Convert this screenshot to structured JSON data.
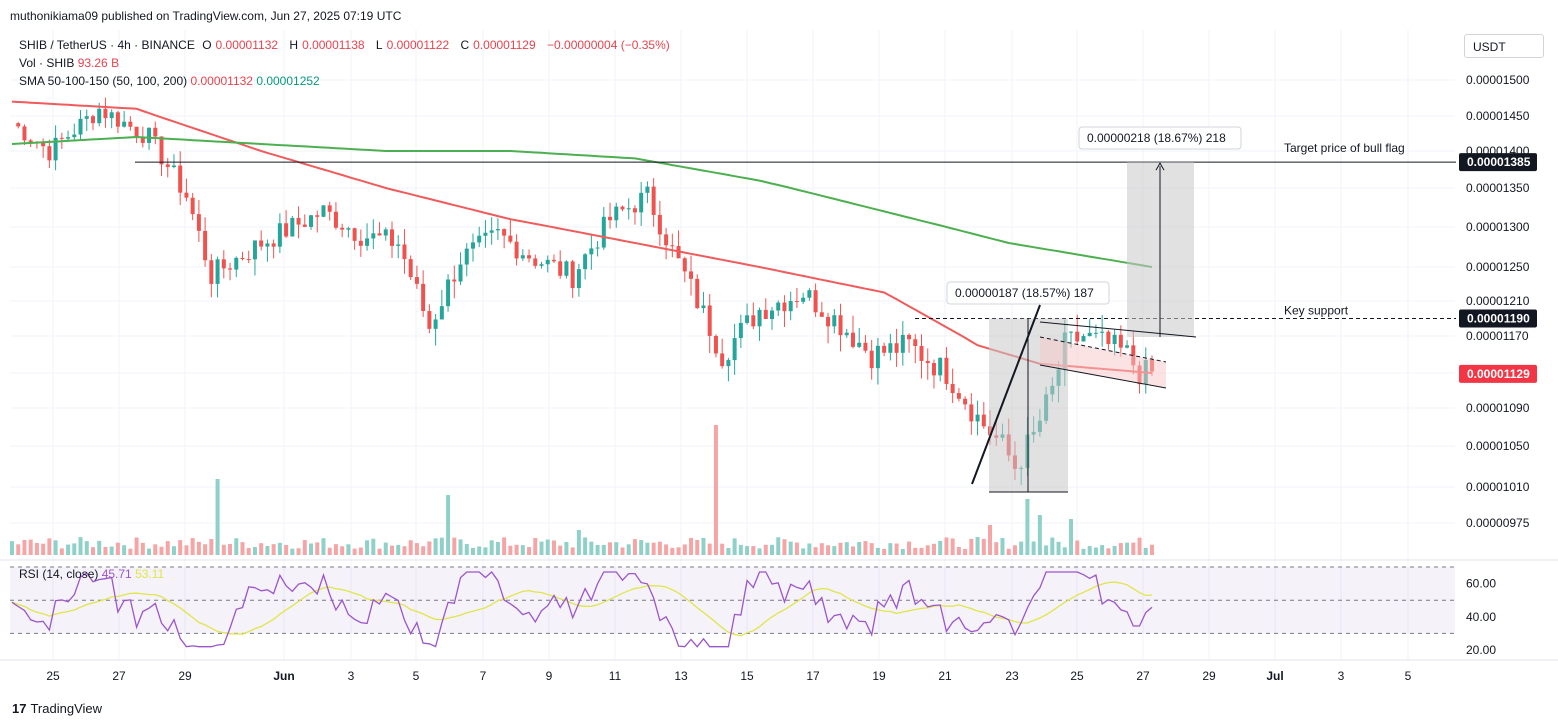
{
  "header": {
    "published_by": "muthonikiama09 published on TradingView.com, Jun 27, 2025 07:19 UTC",
    "symbol": "SHIB / TetherUS · 4h · BINANCE",
    "open_label": "O",
    "open": "0.00001132",
    "high_label": "H",
    "high": "0.00001138",
    "low_label": "L",
    "low": "0.00001122",
    "close_label": "C",
    "close": "0.00001129",
    "change": "−0.00000004 (−0.35%)",
    "vol_label": "Vol · SHIB",
    "vol_value": "93.26 B",
    "sma_label": "SMA 50-100-150 (50, 100, 200)",
    "sma1_value": "0.00001132",
    "sma2_value": "0.00001252",
    "currency_button": "USDT"
  },
  "rsi_header": {
    "label": "RSI (14, close)",
    "rsi_value": "45.71",
    "ma_value": "53.11"
  },
  "footer": {
    "brand": "TradingView"
  },
  "colors": {
    "up": "#26a69a",
    "down": "#ef5350",
    "sma_fast": "#f05b5b",
    "sma_slow": "#4caf50",
    "rsi": "#9c55c9",
    "rsi_ma": "#dfe64a",
    "last_price": "#f23645"
  },
  "chart_data": {
    "type": "candlestick",
    "timeframe": "4h",
    "x_axis_labels": [
      "25",
      "27",
      "29",
      "Jun",
      "3",
      "5",
      "7",
      "9",
      "11",
      "13",
      "15",
      "17",
      "19",
      "21",
      "23",
      "25",
      "27",
      "29",
      "Jul",
      "3",
      "5"
    ],
    "y_axis_ticks": [
      "0.00001500",
      "0.00001450",
      "0.00001400",
      "0.00001350",
      "0.00001300",
      "0.00001250",
      "0.00001210",
      "0.00001170",
      "0.00001130",
      "0.00001090",
      "0.00001050",
      "0.00001010",
      "0.00000975"
    ],
    "y_range": [
      9.6e-06,
      1.52e-05
    ],
    "price_series_approx": [
      [
        0,
        1.44e-05
      ],
      [
        6,
        1.4e-05
      ],
      [
        14,
        1.46e-05
      ],
      [
        22,
        1.42e-05
      ],
      [
        28,
        1.34e-05
      ],
      [
        32,
        1.24e-05
      ],
      [
        40,
        1.28e-05
      ],
      [
        50,
        1.32e-05
      ],
      [
        56,
        1.29e-05
      ],
      [
        62,
        1.28e-05
      ],
      [
        67,
        1.18e-05
      ],
      [
        72,
        1.26e-05
      ],
      [
        78,
        1.29e-05
      ],
      [
        84,
        1.26e-05
      ],
      [
        90,
        1.24e-05
      ],
      [
        96,
        1.31e-05
      ],
      [
        102,
        1.34e-05
      ],
      [
        106,
        1.27e-05
      ],
      [
        110,
        1.21e-05
      ],
      [
        114,
        1.15e-05
      ],
      [
        120,
        1.2e-05
      ],
      [
        127,
        1.22e-05
      ],
      [
        132,
        1.19e-05
      ],
      [
        138,
        1.15e-05
      ],
      [
        144,
        1.16e-05
      ],
      [
        150,
        1.13e-05
      ],
      [
        155,
        1.08e-05
      ],
      [
        159,
        1.05e-05
      ],
      [
        161,
        1.03e-05
      ],
      [
        164,
        1.06e-05
      ],
      [
        167,
        1.11e-05
      ],
      [
        169,
        1.16e-05
      ],
      [
        172,
        1.17e-05
      ],
      [
        176,
        1.16e-05
      ],
      [
        179,
        1.15e-05
      ],
      [
        181,
        1.13e-05
      ],
      [
        183,
        1.13e-05
      ]
    ],
    "sma_fast_series": [
      [
        0,
        1.47e-05
      ],
      [
        20,
        1.46e-05
      ],
      [
        40,
        1.4e-05
      ],
      [
        60,
        1.35e-05
      ],
      [
        80,
        1.31e-05
      ],
      [
        100,
        1.28e-05
      ],
      [
        120,
        1.25e-05
      ],
      [
        140,
        1.22e-05
      ],
      [
        155,
        1.16e-05
      ],
      [
        165,
        1.14e-05
      ],
      [
        183,
        1.13e-05
      ]
    ],
    "sma_slow_series": [
      [
        0,
        1.41e-05
      ],
      [
        20,
        1.42e-05
      ],
      [
        40,
        1.41e-05
      ],
      [
        60,
        1.4e-05
      ],
      [
        80,
        1.4e-05
      ],
      [
        100,
        1.39e-05
      ],
      [
        120,
        1.36e-05
      ],
      [
        140,
        1.32e-05
      ],
      [
        160,
        1.28e-05
      ],
      [
        183,
        1.25e-05
      ]
    ],
    "annotations": [
      {
        "text": "0.00000218 (18.67%) 218",
        "type": "measure"
      },
      {
        "text": "0.00000187 (18.57%) 187",
        "type": "measure"
      },
      {
        "text": "Target price of bull flag",
        "type": "level",
        "value": 1.385e-05
      },
      {
        "text": "Key support",
        "type": "level",
        "value": 1.19e-05
      }
    ],
    "price_labels": [
      {
        "text": "0.00001385",
        "style": "black"
      },
      {
        "text": "0.00001190",
        "style": "black"
      },
      {
        "text": "0.00001129",
        "style": "red"
      }
    ],
    "rsi": {
      "y_ticks": [
        "60.00",
        "40.00",
        "20.00"
      ],
      "upper_band": 70,
      "middle": 50,
      "lower_band": 30,
      "last": 45.71,
      "ma_last": 53.11
    }
  }
}
